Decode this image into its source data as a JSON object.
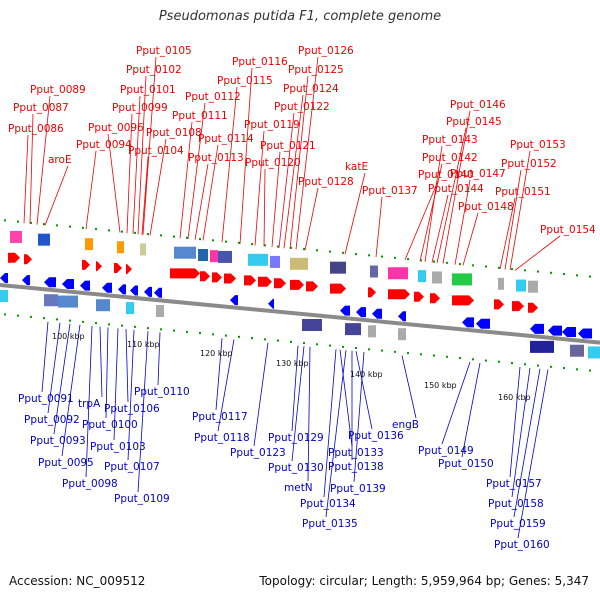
{
  "title": "Pseudomonas putida F1, complete genome",
  "footer": {
    "accession_label": "Accession: NC_009512",
    "summary": "Topology: circular; Length: 5,959,964 bp; Genes: 5,347"
  },
  "colors": {
    "forward_label": "#ee0000",
    "reverse_label": "#0000cc",
    "forward_arrow": "#ff0000",
    "reverse_arrow": "#0000ff",
    "backbone": "#8a8a8a",
    "tick": "#009900"
  },
  "kbp_ticks": [
    "100 kbp",
    "110 kbp",
    "120 kbp",
    "130 kbp",
    "140 kbp",
    "150 kbp",
    "160 kbp"
  ],
  "forward_labels": [
    "Pput_0086",
    "Pput_0087",
    "Pput_0089",
    "aroE",
    "Pput_0094",
    "Pput_0096",
    "Pput_0099",
    "Pput_0101",
    "Pput_0102",
    "Pput_0105",
    "Pput_0104",
    "Pput_0108",
    "Pput_0111",
    "Pput_0112",
    "Pput_0113",
    "Pput_0114",
    "Pput_0115",
    "Pput_0116",
    "Pput_0119",
    "Pput_0120",
    "Pput_0121",
    "Pput_0122",
    "Pput_0124",
    "Pput_0125",
    "Pput_0126",
    "Pput_0128",
    "katE",
    "Pput_0137",
    "Pput_0140",
    "Pput_0142",
    "Pput_0143",
    "Pput_0144",
    "Pput_0145",
    "Pput_0146",
    "Pput_0147",
    "Pput_0148",
    "Pput_0151",
    "Pput_0152",
    "Pput_0153",
    "Pput_0154"
  ],
  "reverse_labels": [
    "Pput_0091",
    "Pput_0092",
    "Pput_0093",
    "Pput_0095",
    "Pput_0098",
    "trpA",
    "Pput_0100",
    "Pput_0103",
    "Pput_0106",
    "Pput_0107",
    "Pput_0109",
    "Pput_0110",
    "Pput_0117",
    "Pput_0118",
    "Pput_0123",
    "Pput_0129",
    "Pput_0130",
    "metN",
    "Pput_0133",
    "Pput_0134",
    "Pput_0135",
    "Pput_0136",
    "Pput_0138",
    "Pput_0139",
    "engB",
    "Pput_0149",
    "Pput_0150",
    "Pput_0157",
    "Pput_0158",
    "Pput_0159",
    "Pput_0160"
  ]
}
